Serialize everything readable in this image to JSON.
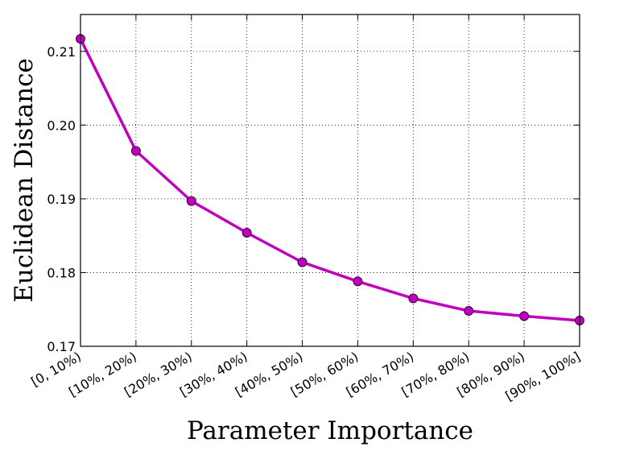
{
  "chart_data": {
    "type": "line",
    "title": "",
    "xlabel": "Parameter Importance",
    "ylabel": "Euclidean Distance",
    "categories": [
      "[0, 10%)",
      "[10%, 20%)",
      "[20%, 30%)",
      "[30%, 40%)",
      "[40%, 50%)",
      "[50%, 60%)",
      "[60%, 70%)",
      "[70%, 80%)",
      "[80%, 90%)",
      "[90%, 100%]"
    ],
    "series": [
      {
        "values": [
          0.2117,
          0.1965,
          0.1897,
          0.1854,
          0.1814,
          0.1788,
          0.1765,
          0.1748,
          0.1741,
          0.1735
        ],
        "color": "#bf00bf",
        "marker": "circle"
      }
    ],
    "ylim": [
      0.17,
      0.215
    ],
    "yticks": [
      0.17,
      0.18,
      0.19,
      0.2,
      0.21
    ],
    "ytick_labels": [
      "0.17",
      "0.18",
      "0.19",
      "0.20",
      "0.21"
    ],
    "grid": true
  }
}
